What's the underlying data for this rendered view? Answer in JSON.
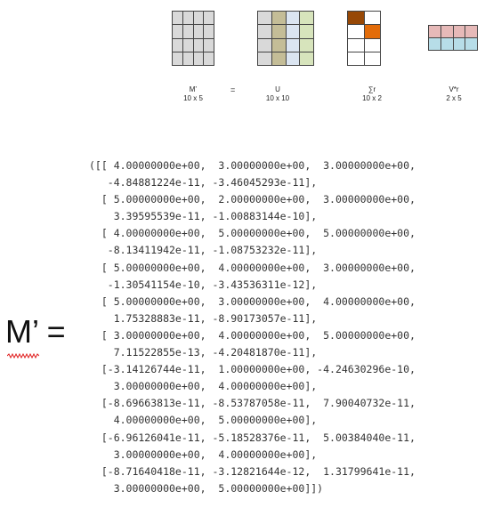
{
  "diagram": {
    "matrices": [
      {
        "name": "M’",
        "dims": "10 x 5"
      },
      {
        "name": "U",
        "dims": "10 x 10"
      },
      {
        "name": "∑r",
        "dims": "10 x 2"
      },
      {
        "name": "V*r",
        "dims": "2 x 5"
      }
    ],
    "equals": "=",
    "colors": {
      "grid_gray": "#d9d9d9",
      "u_olive": "#c4bd97",
      "u_blue": "#dbe5f1",
      "u_green": "#d7e4bc",
      "sigma_brown": "#974806",
      "sigma_orange": "#e36c09",
      "v_pink": "#e6b9b8",
      "v_blue": "#b7dde8"
    }
  },
  "equation": {
    "lhs": "M’ ="
  },
  "matrix_output": {
    "lines": [
      "([[ 4.00000000e+00,  3.00000000e+00,  3.00000000e+00,",
      "   -4.84881224e-11, -3.46045293e-11],",
      "  [ 5.00000000e+00,  2.00000000e+00,  3.00000000e+00,",
      "    3.39595539e-11, -1.00883144e-10],",
      "  [ 4.00000000e+00,  5.00000000e+00,  5.00000000e+00,",
      "   -8.13411942e-11, -1.08753232e-11],",
      "  [ 5.00000000e+00,  4.00000000e+00,  3.00000000e+00,",
      "   -1.30541154e-10, -3.43536311e-12],",
      "  [ 5.00000000e+00,  3.00000000e+00,  4.00000000e+00,",
      "    1.75328883e-11, -8.90173057e-11],",
      "  [ 3.00000000e+00,  4.00000000e+00,  5.00000000e+00,",
      "    7.11522855e-13, -4.20481870e-11],",
      "  [-3.14126744e-11,  1.00000000e+00, -4.24630296e-10,",
      "    3.00000000e+00,  4.00000000e+00],",
      "  [-8.69663813e-11, -8.53787058e-11,  7.90040732e-11,",
      "    4.00000000e+00,  5.00000000e+00],",
      "  [-6.96126041e-11, -5.18528376e-11,  5.00384040e-11,",
      "    3.00000000e+00,  4.00000000e+00],",
      "  [-8.71640418e-11, -3.12821644e-12,  1.31799641e-11,",
      "    3.00000000e+00,  5.00000000e+00]])"
    ]
  }
}
